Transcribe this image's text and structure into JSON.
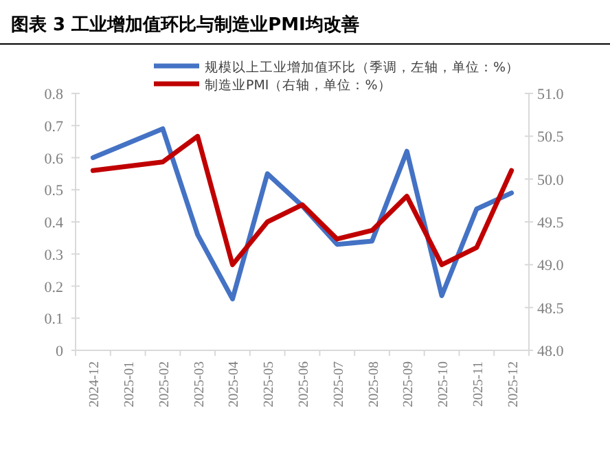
{
  "chart_data": {
    "type": "line",
    "title": "图表 3  工业增加值环比与制造业PMI均改善",
    "categories": [
      "2024-12",
      "2025-01",
      "2025-02",
      "2025-03",
      "2025-04",
      "2025-05",
      "2025-06",
      "2025-07",
      "2025-08",
      "2025-09",
      "2025-10",
      "2025-11",
      "2025-12"
    ],
    "series": [
      {
        "name": "规模以上工业增加值环比（季调，左轴，单位：%）",
        "color": "#4472c4",
        "values": [
          0.6,
          null,
          0.69,
          0.36,
          0.16,
          0.55,
          0.45,
          0.33,
          0.34,
          0.62,
          0.17,
          0.44,
          0.49
        ]
      },
      {
        "name": "制造业PMI（右轴，单位：%）",
        "color": "#c00000",
        "axis": "y2",
        "values": [
          50.1,
          null,
          50.2,
          50.5,
          49.0,
          49.5,
          49.7,
          49.3,
          49.4,
          49.8,
          49.0,
          49.2,
          50.1
        ]
      }
    ],
    "ylim": [
      0,
      0.8
    ],
    "yticks": [
      {
        "value": 0,
        "label": "0"
      },
      {
        "value": 0.1,
        "label": "0.1"
      },
      {
        "value": 0.2,
        "label": "0.2"
      },
      {
        "value": 0.3,
        "label": "0.3"
      },
      {
        "value": 0.4,
        "label": "0.4"
      },
      {
        "value": 0.5,
        "label": "0.5"
      },
      {
        "value": 0.6,
        "label": "0.6"
      },
      {
        "value": 0.7,
        "label": "0.7"
      },
      {
        "value": 0.8,
        "label": "0.8"
      }
    ],
    "y2lim": [
      48,
      51
    ],
    "y2ticks": [
      {
        "value": 48,
        "label": "48.0"
      },
      {
        "value": 48.5,
        "label": "48.5"
      },
      {
        "value": 49,
        "label": "49.0"
      },
      {
        "value": 49.5,
        "label": "49.5"
      },
      {
        "value": 50,
        "label": "50.0"
      },
      {
        "value": 50.5,
        "label": "50.5"
      },
      {
        "value": 51,
        "label": "51.0"
      }
    ],
    "legend": "top",
    "grid": false,
    "marker": "none",
    "line_style": "solid"
  }
}
